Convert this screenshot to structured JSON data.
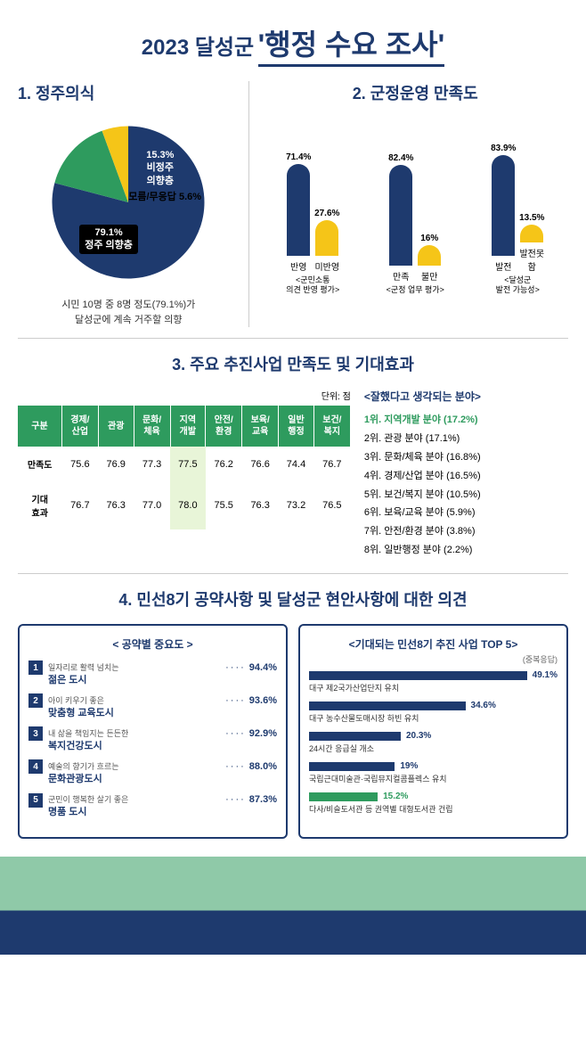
{
  "colors": {
    "navy": "#1e3a6e",
    "yellow": "#f5c518",
    "green": "#2e9b5e",
    "light_green": "#e8f5d8",
    "top5_colors": [
      "#1e3a6e",
      "#1e3a6e",
      "#1e3a6e",
      "#1e3a6e",
      "#2e9b5e"
    ]
  },
  "header": {
    "year": "2023 달성군",
    "title": "'행정 수요 조사'"
  },
  "sec1": {
    "title": "1. 정주의식",
    "pie": {
      "slices": [
        {
          "label": "정주 의향층",
          "value": 79.1,
          "color": "#1e3a6e"
        },
        {
          "label": "비정주\n의향층",
          "value": 15.3,
          "color": "#2e9b5e"
        },
        {
          "label": "모름/무응답",
          "value": 5.6,
          "color": "#f5c518"
        }
      ]
    },
    "desc_l1": "시민 10명 중 8명 정도(79.1%)가",
    "desc_l2": "달성군에 계속 거주할 의향"
  },
  "sec2": {
    "title": "2. 군정운영 만족도",
    "groups": [
      {
        "sublabel": "<군민소통\n의견 반영 평가>",
        "bars": [
          {
            "label": "반영",
            "value": 71.4,
            "color": "#1e3a6e"
          },
          {
            "label": "미반영",
            "value": 27.6,
            "color": "#f5c518"
          }
        ]
      },
      {
        "sublabel": "<군정 업무 평가>",
        "bars": [
          {
            "label": "만족",
            "value": 82.4,
            "color": "#1e3a6e"
          },
          {
            "label": "불만",
            "value": 16.0,
            "color": "#f5c518"
          }
        ]
      },
      {
        "sublabel": "<달성군\n발전 가능성>",
        "bars": [
          {
            "label": "발전",
            "value": 83.9,
            "color": "#1e3a6e"
          },
          {
            "label": "발전못함",
            "value": 13.5,
            "color": "#f5c518"
          }
        ]
      }
    ],
    "max_value": 90
  },
  "sec3": {
    "title": "3. 주요 추진사업 만족도 및 기대효과",
    "unit": "단위: 점",
    "table": {
      "columns": [
        "구분",
        "경제/\n산업",
        "관광",
        "문화/\n체육",
        "지역\n개발",
        "안전/\n환경",
        "보육/\n교육",
        "일반\n행정",
        "보건/\n복지"
      ],
      "rows": [
        {
          "head": "만족도",
          "vals": [
            "75.6",
            "76.9",
            "77.3",
            "77.5",
            "76.2",
            "76.6",
            "74.4",
            "76.7"
          ],
          "highlight_idx": 3
        },
        {
          "head": "기대\n효과",
          "vals": [
            "76.7",
            "76.3",
            "77.0",
            "78.0",
            "75.5",
            "76.3",
            "73.2",
            "76.5"
          ],
          "highlight_idx": 3
        }
      ]
    },
    "rank_title": "<잘했다고 생각되는 분야>",
    "ranks": [
      "1위. 지역개발 분야 (17.2%)",
      "2위. 관광 분야 (17.1%)",
      "3위. 문화/체육 분야 (16.8%)",
      "4위. 경제/산업 분야 (16.5%)",
      "5위. 보건/복지 분야 (10.5%)",
      "6위. 보육/교육 분야 (5.9%)",
      "7위. 안전/환경 분야 (3.8%)",
      "8위. 일반행정 분야 (2.2%)"
    ]
  },
  "sec4": {
    "title": "4. 민선8기 공약사항 및 달성군 현안사항에 대한 의견",
    "left_title": "< 공약별 중요도 >",
    "pledges": [
      {
        "num": "1",
        "small": "일자리로 활력 넘치는",
        "main": "젊은 도시",
        "pct": "94.4%"
      },
      {
        "num": "2",
        "small": "아이 키우기 좋은",
        "main": "맞춤형 교육도시",
        "pct": "93.6%"
      },
      {
        "num": "3",
        "small": "내 삶을 책임지는 든든한",
        "main": "복지건강도시",
        "pct": "92.9%"
      },
      {
        "num": "4",
        "small": "예술의 향기가 흐르는",
        "main": "문화관광도시",
        "pct": "88.0%"
      },
      {
        "num": "5",
        "small": "군민이 행복한 살기 좋은",
        "main": "명품 도시",
        "pct": "87.3%"
      }
    ],
    "right_title": "<기대되는 민선8기 추진 사업 TOP 5>",
    "right_sub": "(중복응답)",
    "top5": [
      {
        "label": "대구 제2국가산업단지 유치",
        "pct": 49.1
      },
      {
        "label": "대구 농수산물도매시장 하빈 유치",
        "pct": 34.6
      },
      {
        "label": "24시간 응급실 개소",
        "pct": 20.3
      },
      {
        "label": "국립근대미술관·국립뮤지컬콤플렉스 유치",
        "pct": 19.0
      },
      {
        "label": "다사/비슬도서관 등 권역별 대형도서관 건립",
        "pct": 15.2
      }
    ],
    "top5_max": 55
  }
}
